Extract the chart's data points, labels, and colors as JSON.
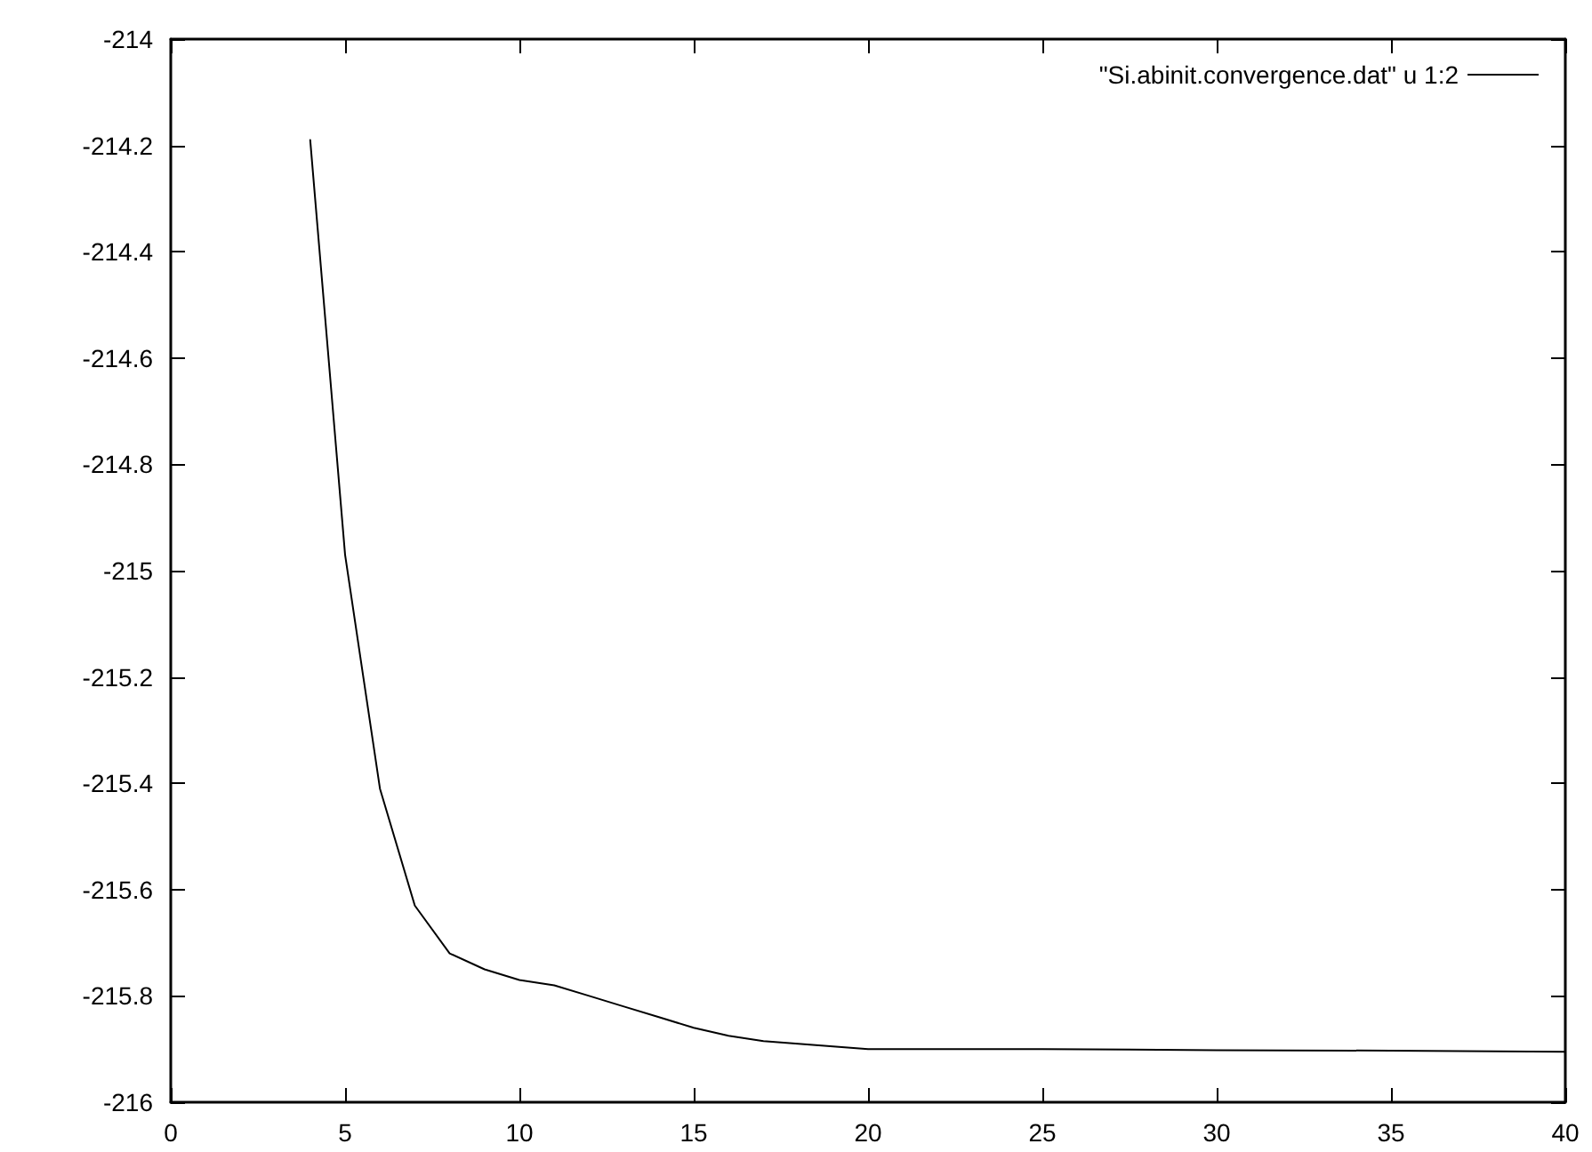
{
  "chart_data": {
    "type": "line",
    "x": [
      4,
      5,
      6,
      7,
      8,
      9,
      10,
      11,
      12,
      13,
      14,
      15,
      16,
      17,
      18,
      19,
      20,
      25,
      30,
      35,
      40
    ],
    "series": [
      {
        "name": "\"Si.abinit.convergence.dat\" u 1:2",
        "color": "#000000",
        "values": [
          -214.19,
          -214.97,
          -215.41,
          -215.63,
          -215.72,
          -215.75,
          -215.77,
          -215.78,
          -215.8,
          -215.82,
          -215.84,
          -215.86,
          -215.875,
          -215.885,
          -215.89,
          -215.895,
          -215.9,
          -215.9,
          -215.902,
          -215.903,
          -215.905
        ]
      }
    ],
    "xlim": [
      0,
      40
    ],
    "xticks": [
      0,
      5,
      10,
      15,
      20,
      25,
      30,
      35,
      40
    ],
    "ylim": [
      -216,
      -214
    ],
    "yticks": [
      -216,
      -215.8,
      -215.6,
      -215.4,
      -215.2,
      -215,
      -214.8,
      -214.6,
      -214.4,
      -214.2,
      -214
    ],
    "grid": false,
    "legend": "top right",
    "marker": "none",
    "line_style": "solid"
  }
}
